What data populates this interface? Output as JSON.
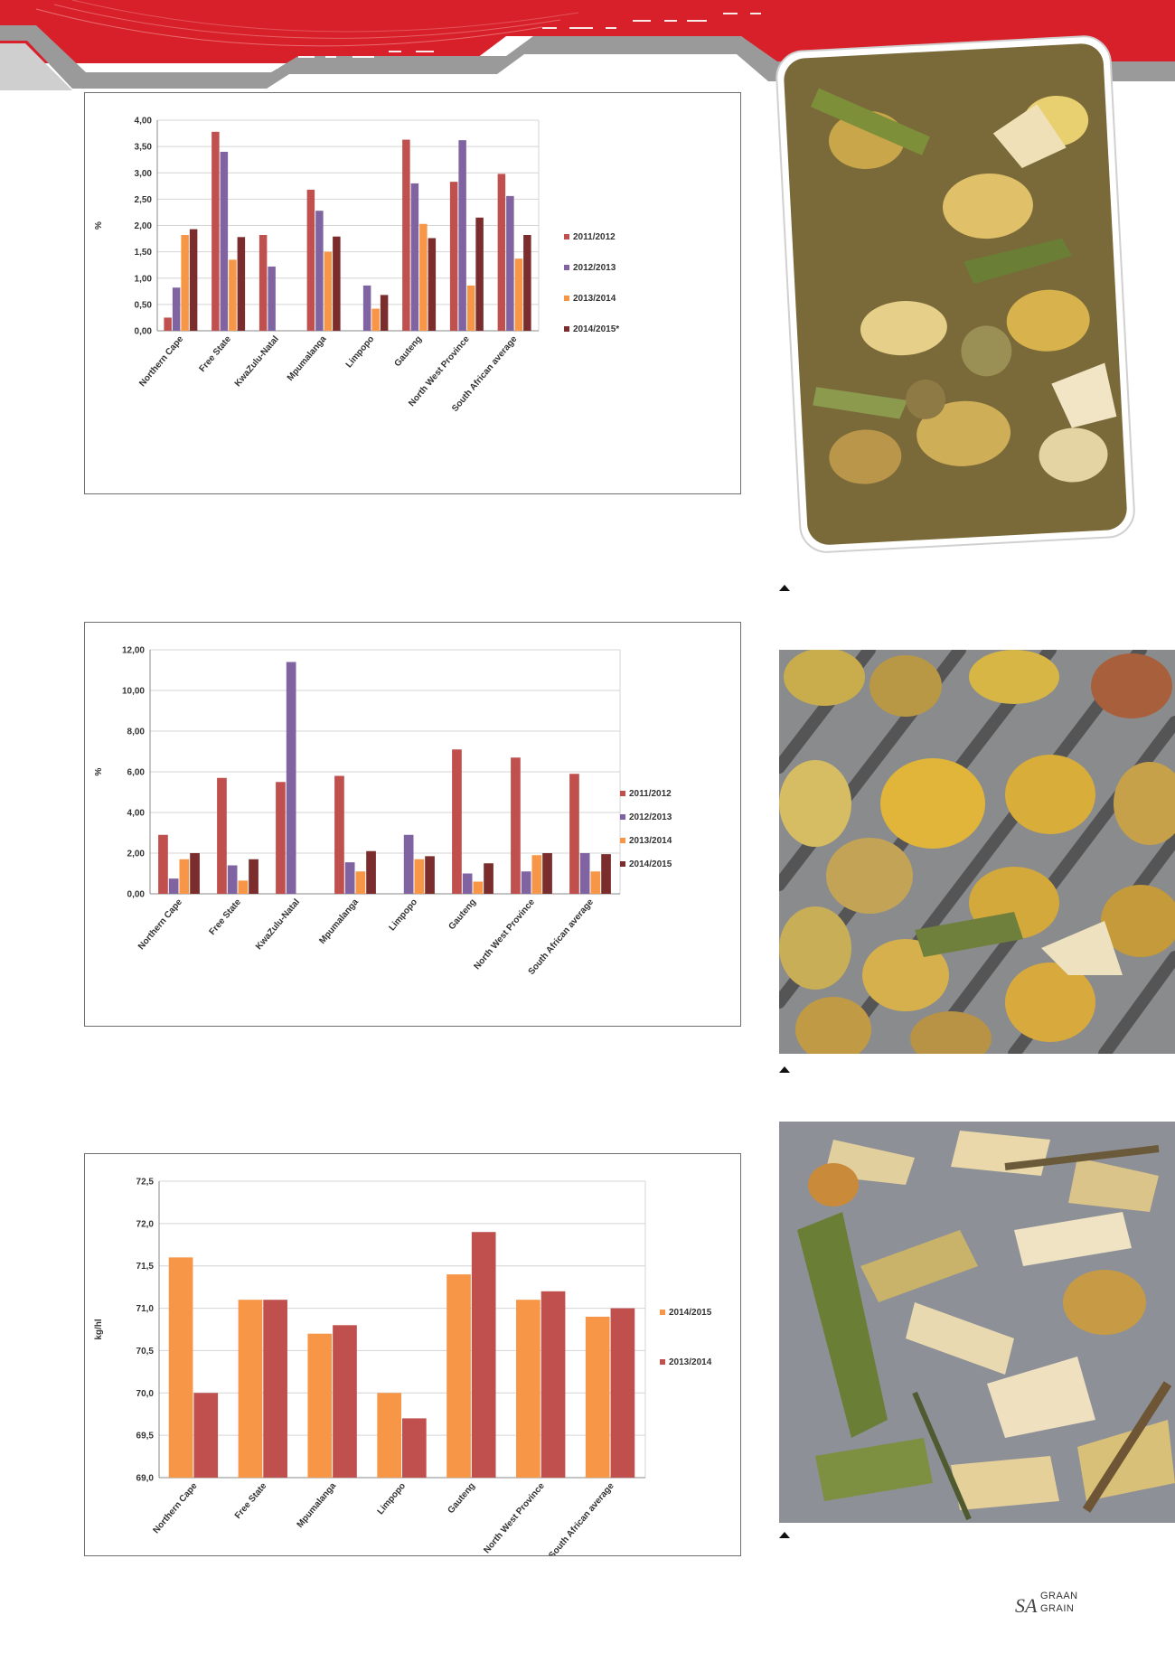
{
  "brand": {
    "graan": "GRAAN",
    "sa": "SA",
    "grain": "GRAIN",
    "accent": "#d8202a"
  },
  "charts": [
    {
      "id": "c1",
      "type": "bar",
      "title": "",
      "ylabel": "%",
      "ylim": [
        0,
        4
      ],
      "yticks": [
        "0,00",
        "0,50",
        "1,00",
        "1,50",
        "2,00",
        "2,50",
        "3,00",
        "3,50",
        "4,00"
      ],
      "categories": [
        "Northern Cape",
        "Free State",
        "KwaZulu-Natal",
        "Mpumalanga",
        "Limpopo",
        "Gauteng",
        "North West Province",
        "South African average"
      ],
      "series": [
        {
          "name": "2011/2012",
          "color": "#c0504d",
          "values": [
            0.25,
            3.78,
            1.82,
            2.68,
            0,
            3.63,
            2.83,
            2.98
          ]
        },
        {
          "name": "2012/2013",
          "color": "#8064a2",
          "values": [
            0.82,
            3.4,
            1.22,
            2.28,
            0.86,
            2.8,
            3.62,
            2.56
          ]
        },
        {
          "name": "2013/2014",
          "color": "#f79646",
          "values": [
            1.82,
            1.35,
            0,
            1.5,
            0.42,
            2.03,
            0.86,
            1.37
          ]
        },
        {
          "name": "2014/2015*",
          "color": "#7b2c2c",
          "values": [
            1.93,
            1.78,
            0,
            1.79,
            0.68,
            1.76,
            2.15,
            1.82
          ]
        }
      ]
    },
    {
      "id": "c2",
      "type": "bar",
      "title": "",
      "ylabel": "%",
      "ylim": [
        0,
        12
      ],
      "yticks": [
        "0,00",
        "2,00",
        "4,00",
        "6,00",
        "8,00",
        "10,00",
        "12,00"
      ],
      "categories": [
        "Northern Cape",
        "Free State",
        "KwaZulu-Natal",
        "Mpumalanga",
        "Limpopo",
        "Gauteng",
        "North West Province",
        "South African average"
      ],
      "series": [
        {
          "name": "2011/2012",
          "color": "#c0504d",
          "values": [
            2.9,
            5.7,
            5.5,
            5.8,
            0,
            7.1,
            6.7,
            5.9
          ]
        },
        {
          "name": "2012/2013",
          "color": "#8064a2",
          "values": [
            0.75,
            1.4,
            11.4,
            1.55,
            2.9,
            1.0,
            1.1,
            2.0
          ]
        },
        {
          "name": "2013/2014",
          "color": "#f79646",
          "values": [
            1.7,
            0.65,
            0,
            1.1,
            1.7,
            0.6,
            1.9,
            1.1
          ]
        },
        {
          "name": "2014/2015",
          "color": "#7b2c2c",
          "values": [
            2.0,
            1.7,
            0,
            2.1,
            1.85,
            1.5,
            2.0,
            1.95
          ]
        }
      ]
    },
    {
      "id": "c3",
      "type": "bar",
      "title": "",
      "ylabel": "kg/hl",
      "ylim": [
        69,
        72.5
      ],
      "yticks": [
        "69,0",
        "69,5",
        "70,0",
        "70,5",
        "71,0",
        "71,5",
        "72,0",
        "72,5"
      ],
      "categories": [
        "Northern Cape",
        "Free State",
        "Mpumalanga",
        "Limpopo",
        "Gauteng",
        "North West Province",
        "South African average"
      ],
      "series": [
        {
          "name": "2014/2015",
          "color": "#f79646",
          "values": [
            71.6,
            71.1,
            70.7,
            70.0,
            71.4,
            71.1,
            70.9
          ]
        },
        {
          "name": "2013/2014",
          "color": "#c0504d",
          "values": [
            70.0,
            71.1,
            70.8,
            69.7,
            71.9,
            71.2,
            71.0
          ]
        }
      ]
    }
  ]
}
